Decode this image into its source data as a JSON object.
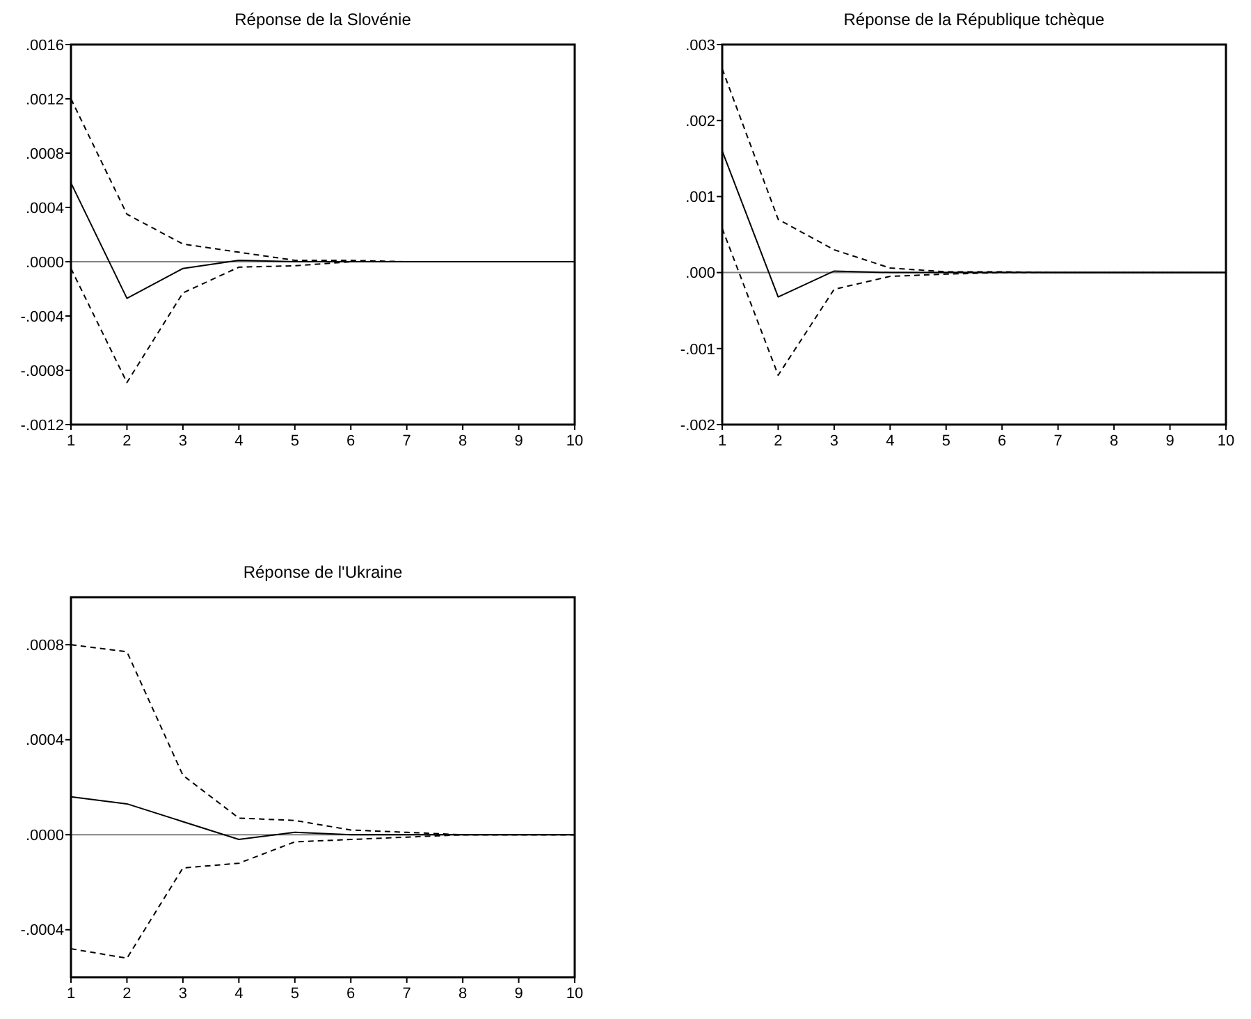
{
  "chart_data": [
    {
      "type": "line",
      "title": "Réponse de la Slovénie",
      "x": [
        1,
        2,
        3,
        4,
        5,
        6,
        7,
        8,
        9,
        10
      ],
      "xlim": [
        1,
        10
      ],
      "xticks": [
        1,
        2,
        3,
        4,
        5,
        6,
        7,
        8,
        9,
        10
      ],
      "ylim": [
        -0.0012,
        0.0016
      ],
      "yticks": [
        {
          "value": -0.0012,
          "label": "-.0012"
        },
        {
          "value": -0.0008,
          "label": "-.0008"
        },
        {
          "value": -0.0004,
          "label": "-.0004"
        },
        {
          "value": 0,
          "label": ".0000"
        },
        {
          "value": 0.0004,
          "label": ".0004"
        },
        {
          "value": 0.0008,
          "label": ".0008"
        },
        {
          "value": 0.0012,
          "label": ".0012"
        },
        {
          "value": 0.0016,
          "label": ".0016"
        }
      ],
      "ref_lines": [
        {
          "axis": "y",
          "value": 0,
          "color": "#808080"
        }
      ],
      "series": [
        {
          "color": "#000000",
          "line_style": "solid",
          "values": [
            0.00058,
            -0.00027,
            -5e-05,
            1e-05,
            0,
            0,
            0,
            0,
            0,
            0
          ]
        },
        {
          "color": "#000000",
          "line_style": "dashed",
          "values": [
            0.0012,
            0.00035,
            0.00013,
            7e-05,
            1e-05,
            1e-05,
            0,
            0,
            0,
            0
          ]
        },
        {
          "color": "#000000",
          "line_style": "dashed",
          "values": [
            -5e-05,
            -0.00089,
            -0.00023,
            -4e-05,
            -3e-05,
            0,
            0,
            0,
            0,
            0
          ]
        }
      ]
    },
    {
      "type": "line",
      "title": "Réponse de la République tchèque",
      "x": [
        1,
        2,
        3,
        4,
        5,
        6,
        7,
        8,
        9,
        10
      ],
      "xlim": [
        1,
        10
      ],
      "xticks": [
        1,
        2,
        3,
        4,
        5,
        6,
        7,
        8,
        9,
        10
      ],
      "ylim": [
        -0.002,
        0.003
      ],
      "yticks": [
        {
          "value": -0.002,
          "label": "-.002"
        },
        {
          "value": -0.001,
          "label": "-.001"
        },
        {
          "value": 0,
          "label": ".000"
        },
        {
          "value": 0.001,
          "label": ".001"
        },
        {
          "value": 0.002,
          "label": ".002"
        },
        {
          "value": 0.003,
          "label": ".003"
        }
      ],
      "ref_lines": [
        {
          "axis": "y",
          "value": 0,
          "color": "#808080"
        }
      ],
      "series": [
        {
          "color": "#000000",
          "line_style": "solid",
          "values": [
            0.0016,
            -0.00032,
            2e-05,
            0,
            0,
            0,
            0,
            0,
            0,
            0
          ]
        },
        {
          "color": "#000000",
          "line_style": "dashed",
          "values": [
            0.00268,
            0.0007,
            0.0003,
            6e-05,
            1e-05,
            1e-05,
            0,
            0,
            0,
            0
          ]
        },
        {
          "color": "#000000",
          "line_style": "dashed",
          "values": [
            0.00058,
            -0.00135,
            -0.00022,
            -5e-05,
            -2e-05,
            0,
            0,
            0,
            0,
            0
          ]
        }
      ]
    },
    {
      "type": "line",
      "title": "Réponse de l'Ukraine",
      "x": [
        1,
        2,
        3,
        4,
        5,
        6,
        7,
        8,
        9,
        10
      ],
      "xlim": [
        1,
        10
      ],
      "xticks": [
        1,
        2,
        3,
        4,
        5,
        6,
        7,
        8,
        9,
        10
      ],
      "ylim": [
        -0.0006,
        0.001
      ],
      "yticks": [
        {
          "value": -0.0004,
          "label": "-.0004"
        },
        {
          "value": 0,
          "label": ".0000"
        },
        {
          "value": 0.0004,
          "label": ".0004"
        },
        {
          "value": 0.0008,
          "label": ".0008"
        }
      ],
      "ref_lines": [
        {
          "axis": "y",
          "value": 0,
          "color": "#808080"
        }
      ],
      "series": [
        {
          "color": "#000000",
          "line_style": "solid",
          "values": [
            0.00016,
            0.00013,
            5.5e-05,
            -2e-05,
            1e-05,
            0,
            0,
            0,
            0,
            0
          ]
        },
        {
          "color": "#000000",
          "line_style": "dashed",
          "values": [
            0.0008,
            0.00077,
            0.00025,
            7e-05,
            6e-05,
            2e-05,
            1e-05,
            0,
            0,
            0
          ]
        },
        {
          "color": "#000000",
          "line_style": "dashed",
          "values": [
            -0.00048,
            -0.00052,
            -0.00014,
            -0.00012,
            -3e-05,
            -2e-05,
            -1e-05,
            0,
            0,
            0
          ]
        }
      ]
    }
  ]
}
